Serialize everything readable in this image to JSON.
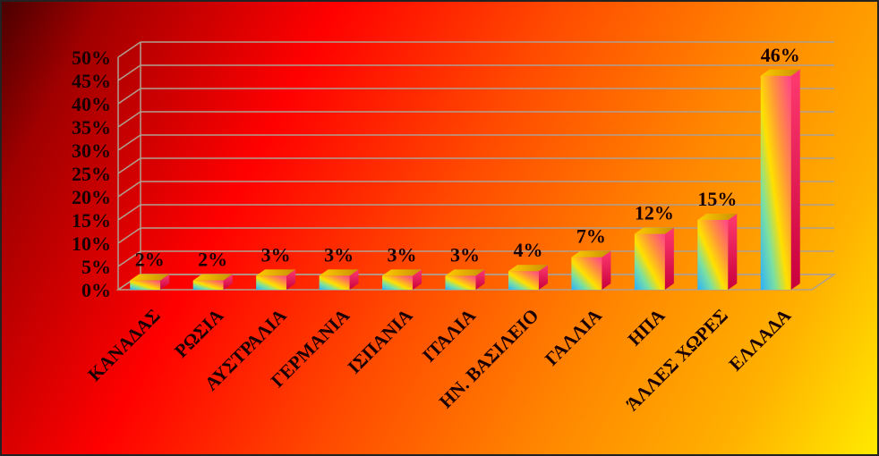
{
  "chart_data": {
    "type": "bar",
    "categories": [
      "ΚΑΝΑΔΑΣ",
      "ΡΩΣΙΑ",
      "ΑΥΣΤΡΑΛΙΑ",
      "ΓΕΡΜΑΝΙΑ",
      "ΙΣΠΑΝΙΑ",
      "ΙΤΑΛΙΑ",
      "ΗΝ. ΒΑΣΙΛΕΙΟ",
      "ΓΑΛΛΙΑ",
      "ΗΠΑ",
      "ΆΛΛΕΣ ΧΩΡΕΣ",
      "ΕΛΛΑΔΑ"
    ],
    "values": [
      2,
      2,
      3,
      3,
      3,
      3,
      4,
      7,
      12,
      15,
      46
    ],
    "data_labels": [
      "2%",
      "2%",
      "3%",
      "3%",
      "3%",
      "3%",
      "4%",
      "7%",
      "12%",
      "15%",
      "46%"
    ],
    "y_ticks": [
      "0%",
      "5%",
      "10%",
      "15%",
      "20%",
      "25%",
      "30%",
      "35%",
      "40%",
      "45%",
      "50%"
    ],
    "ylim": [
      0,
      50
    ],
    "grid": true,
    "legend": "none",
    "style": "3d-column",
    "colors": {
      "gridline": "#b0a090",
      "bar_top": "#e0b000",
      "bar_right": "#e8205a",
      "bar_front": [
        "#2ab0ff",
        "#ffe000",
        "#ff5090"
      ]
    }
  }
}
